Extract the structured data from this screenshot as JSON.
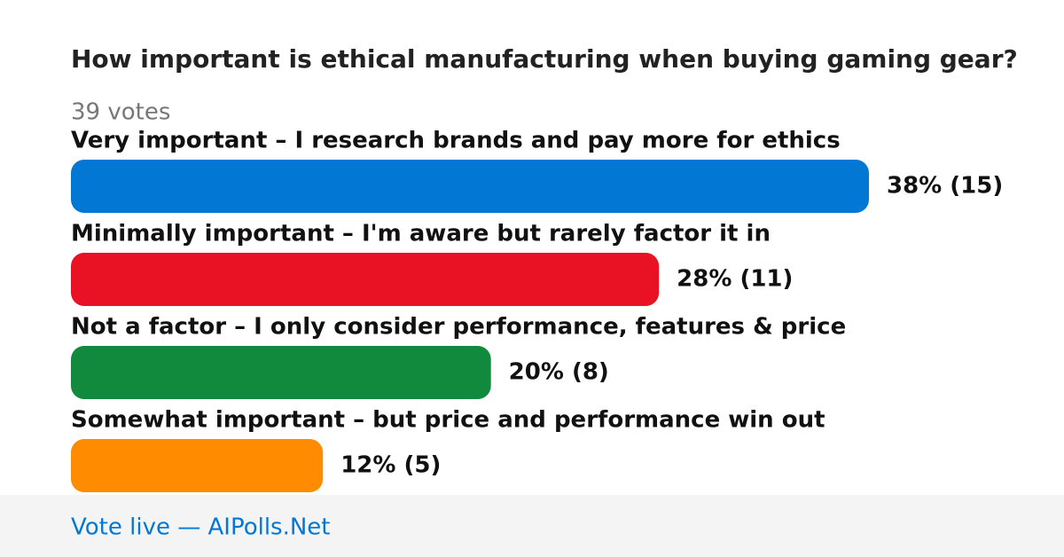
{
  "chart_data": {
    "type": "bar",
    "orientation": "horizontal",
    "title": "How important is ethical manufacturing when buying gaming gear?",
    "subtitle": "39 votes",
    "footer": "Vote live — AIPolls.Net",
    "categories": [
      "Very important – I research brands and pay more for ethics",
      "Minimally important – I'm aware but rarely factor it in",
      "Not a factor – I only consider performance, features & price",
      "Somewhat important – but price and performance win out"
    ],
    "values": [
      38,
      28,
      20,
      12
    ],
    "value_labels": [
      "38% (15)",
      "28% (11)",
      "20% (8)",
      "12% (5)"
    ],
    "colors": [
      "#0277d4",
      "#e81224",
      "#118a3e",
      "#ff8c00"
    ]
  }
}
